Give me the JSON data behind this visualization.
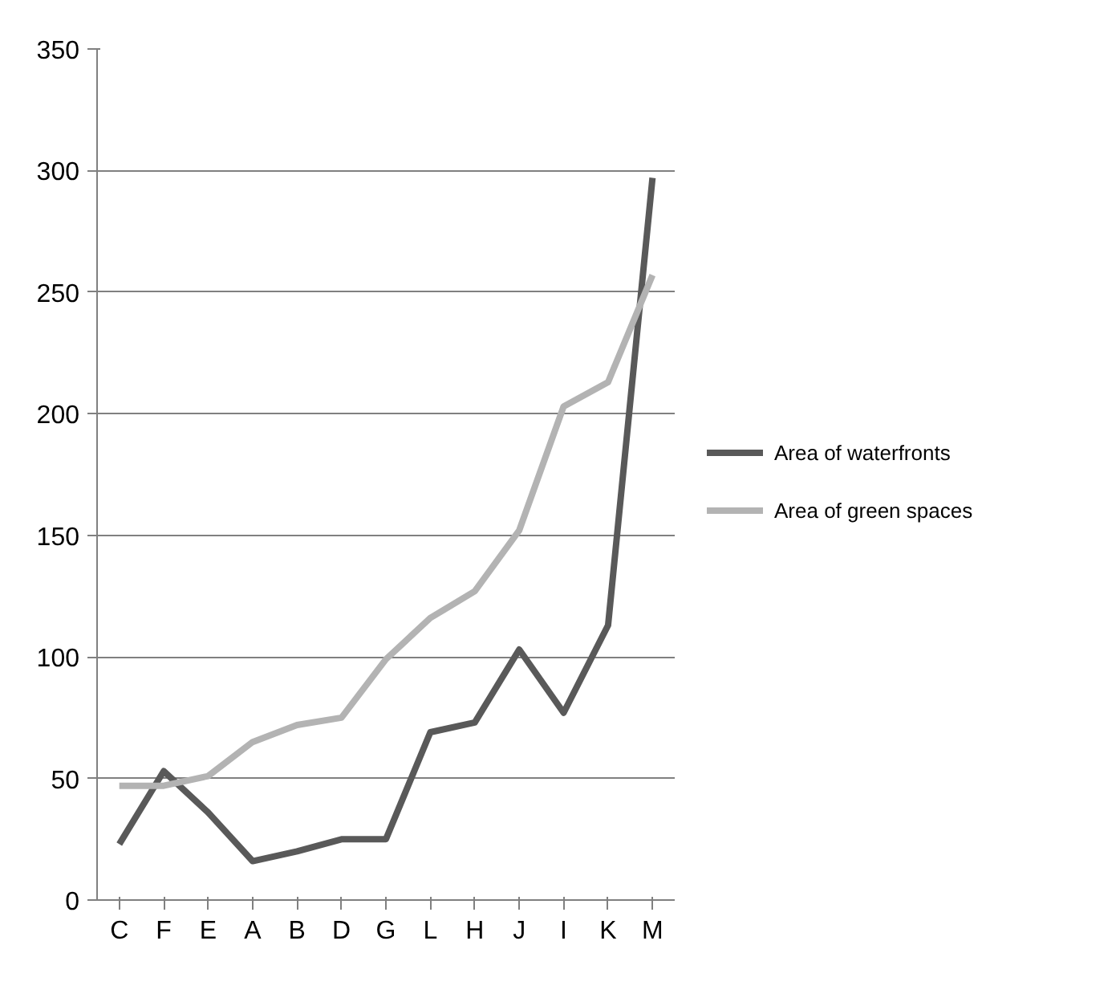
{
  "chart_data": {
    "type": "line",
    "categories": [
      "C",
      "F",
      "E",
      "A",
      "B",
      "D",
      "G",
      "L",
      "H",
      "J",
      "I",
      "K",
      "M"
    ],
    "series": [
      {
        "name": "Area of waterfronts",
        "color": "#595959",
        "values": [
          23,
          53,
          36,
          16,
          20,
          25,
          25,
          69,
          73,
          103,
          77,
          113,
          297
        ]
      },
      {
        "name": "Area of green spaces",
        "color": "#b3b3b3",
        "values": [
          47,
          47,
          51,
          65,
          72,
          75,
          99,
          116,
          127,
          152,
          203,
          213,
          257
        ]
      }
    ],
    "ylim": [
      0,
      350
    ],
    "yticks": [
      0,
      50,
      100,
      150,
      200,
      250,
      300,
      350
    ],
    "grid": "y",
    "legend": "right",
    "marker": "none",
    "line_style": "solid"
  }
}
